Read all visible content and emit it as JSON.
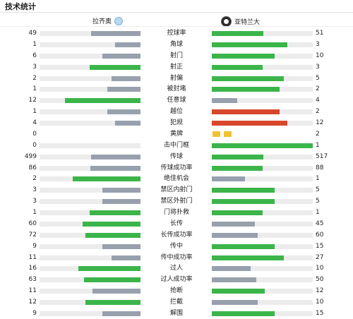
{
  "page": {
    "title": "技术统计"
  },
  "teams": {
    "home": {
      "name": "拉齐奥"
    },
    "away": {
      "name": "亚特兰大"
    }
  },
  "colors": {
    "win": "#3bb54a",
    "lose": "#98a0ad",
    "away_red": "#d8472b",
    "track": "#ececec",
    "card": "#f2c12e"
  },
  "stats": [
    {
      "label": "控球率",
      "home": "49",
      "away": "51",
      "home_level": 0.49,
      "away_level": 0.51,
      "home_color": "lose",
      "away_color": "win"
    },
    {
      "label": "角球",
      "home": "1",
      "away": "3",
      "home_level": 0.25,
      "away_level": 0.75,
      "home_color": "lose",
      "away_color": "win"
    },
    {
      "label": "射门",
      "home": "6",
      "away": "10",
      "home_level": 0.375,
      "away_level": 0.625,
      "home_color": "lose",
      "away_color": "win"
    },
    {
      "label": "射正",
      "home": "3",
      "away": "3",
      "home_level": 0.5,
      "away_level": 0.5,
      "home_color": "win",
      "away_color": "win"
    },
    {
      "label": "射偏",
      "home": "2",
      "away": "5",
      "home_level": 0.29,
      "away_level": 0.71,
      "home_color": "lose",
      "away_color": "win"
    },
    {
      "label": "被封堵",
      "home": "1",
      "away": "2",
      "home_level": 0.33,
      "away_level": 0.67,
      "home_color": "lose",
      "away_color": "win"
    },
    {
      "label": "任意球",
      "home": "12",
      "away": "4",
      "home_level": 0.75,
      "away_level": 0.25,
      "home_color": "win",
      "away_color": "lose"
    },
    {
      "label": "越位",
      "home": "1",
      "away": "2",
      "home_level": 0.33,
      "away_level": 0.67,
      "home_color": "lose",
      "away_color": "red"
    },
    {
      "label": "犯规",
      "home": "4",
      "away": "12",
      "home_level": 0.25,
      "away_level": 0.75,
      "home_color": "lose",
      "away_color": "red"
    },
    {
      "label": "黄牌",
      "home": "0",
      "away": "2",
      "cards": true,
      "home_cards": 0,
      "away_cards": 2
    },
    {
      "label": "击中门框",
      "home": "0",
      "away": "1",
      "home_level": 0.0,
      "away_level": 1.0,
      "home_color": "lose",
      "away_color": "win"
    },
    {
      "label": "传球",
      "home": "499",
      "away": "517",
      "home_level": 0.49,
      "away_level": 0.51,
      "home_color": "lose",
      "away_color": "win"
    },
    {
      "label": "传球成功率",
      "home": "86",
      "away": "88",
      "home_level": 0.494,
      "away_level": 0.506,
      "home_color": "lose",
      "away_color": "win"
    },
    {
      "label": "绝佳机会",
      "home": "2",
      "away": "1",
      "home_level": 0.67,
      "away_level": 0.33,
      "home_color": "win",
      "away_color": "lose"
    },
    {
      "label": "禁区内射门",
      "home": "3",
      "away": "5",
      "home_level": 0.375,
      "away_level": 0.625,
      "home_color": "lose",
      "away_color": "win"
    },
    {
      "label": "禁区外射门",
      "home": "3",
      "away": "5",
      "home_level": 0.375,
      "away_level": 0.625,
      "home_color": "lose",
      "away_color": "win"
    },
    {
      "label": "门将扑救",
      "home": "1",
      "away": "1",
      "home_level": 0.5,
      "away_level": 0.5,
      "home_color": "win",
      "away_color": "win"
    },
    {
      "label": "长传",
      "home": "60",
      "away": "45",
      "home_level": 0.57,
      "away_level": 0.43,
      "home_color": "win",
      "away_color": "lose"
    },
    {
      "label": "长传成功率",
      "home": "72",
      "away": "60",
      "home_level": 0.545,
      "away_level": 0.455,
      "home_color": "win",
      "away_color": "lose"
    },
    {
      "label": "传中",
      "home": "9",
      "away": "15",
      "home_level": 0.375,
      "away_level": 0.625,
      "home_color": "lose",
      "away_color": "win"
    },
    {
      "label": "传中成功率",
      "home": "11",
      "away": "27",
      "home_level": 0.29,
      "away_level": 0.71,
      "home_color": "lose",
      "away_color": "win"
    },
    {
      "label": "过人",
      "home": "16",
      "away": "10",
      "home_level": 0.615,
      "away_level": 0.385,
      "home_color": "win",
      "away_color": "lose"
    },
    {
      "label": "过人成功率",
      "home": "63",
      "away": "50",
      "home_level": 0.557,
      "away_level": 0.443,
      "home_color": "win",
      "away_color": "lose"
    },
    {
      "label": "抢断",
      "home": "11",
      "away": "12",
      "home_level": 0.478,
      "away_level": 0.522,
      "home_color": "lose",
      "away_color": "win"
    },
    {
      "label": "拦截",
      "home": "12",
      "away": "10",
      "home_level": 0.545,
      "away_level": 0.455,
      "home_color": "win",
      "away_color": "lose"
    },
    {
      "label": "解围",
      "home": "9",
      "away": "15",
      "home_level": 0.375,
      "away_level": 0.625,
      "home_color": "lose",
      "away_color": "win"
    }
  ]
}
